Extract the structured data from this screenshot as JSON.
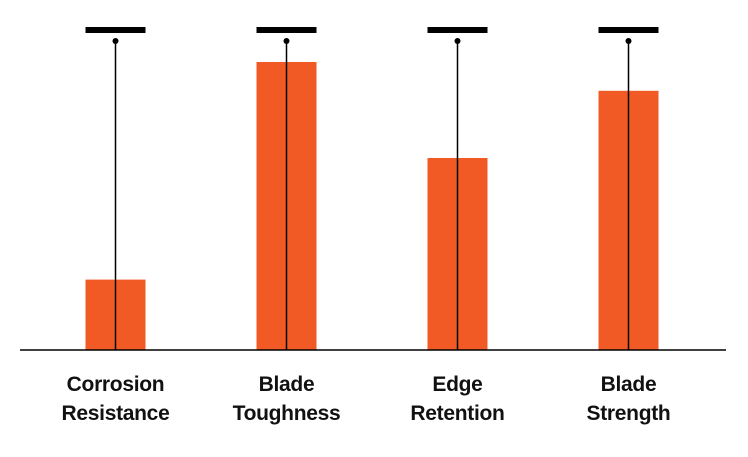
{
  "chart_data": {
    "type": "bar",
    "categories": [
      "Corrosion Resistance",
      "Blade Toughness",
      "Edge Retention",
      "Blade Strength"
    ],
    "values": [
      2.2,
      9.0,
      6.0,
      8.1
    ],
    "color": "#f15a24",
    "ylim": [
      0,
      10
    ]
  }
}
